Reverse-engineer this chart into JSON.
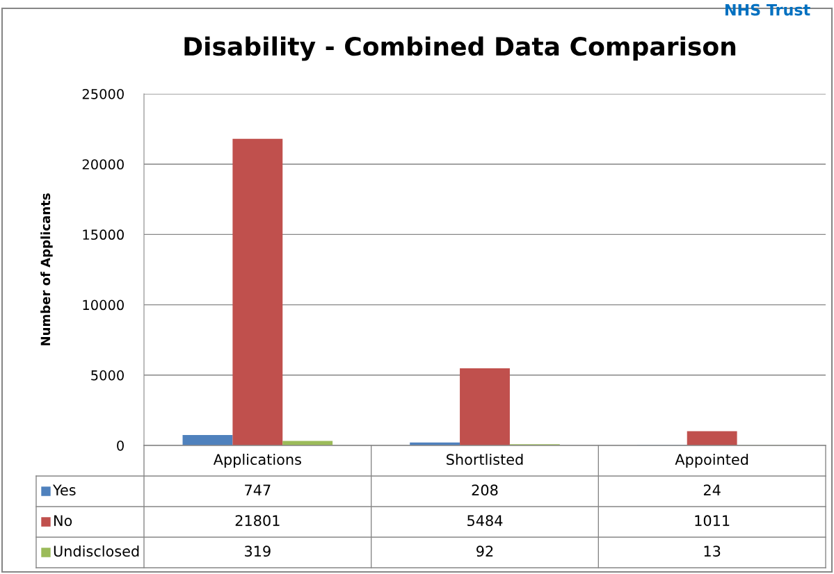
{
  "chart_data": {
    "type": "bar",
    "title": "Disability - Combined Data Comparison",
    "ylabel": "Number of Applicants",
    "categories": [
      "Applications",
      "Shortlisted",
      "Appointed"
    ],
    "series": [
      {
        "name": "Yes",
        "color": "#4f81bd",
        "values": [
          747,
          208,
          24
        ]
      },
      {
        "name": "No",
        "color": "#c0504d",
        "values": [
          21801,
          5484,
          1011
        ]
      },
      {
        "name": "Undisclosed",
        "color": "#9bbb59",
        "values": [
          319,
          92,
          13
        ]
      }
    ],
    "ylim": [
      0,
      25000
    ],
    "yticks": [
      0,
      5000,
      10000,
      15000,
      20000,
      25000
    ],
    "grid": "y",
    "data_labels": true,
    "legend": "bottom",
    "annotations": [
      "NHS Trust"
    ]
  }
}
